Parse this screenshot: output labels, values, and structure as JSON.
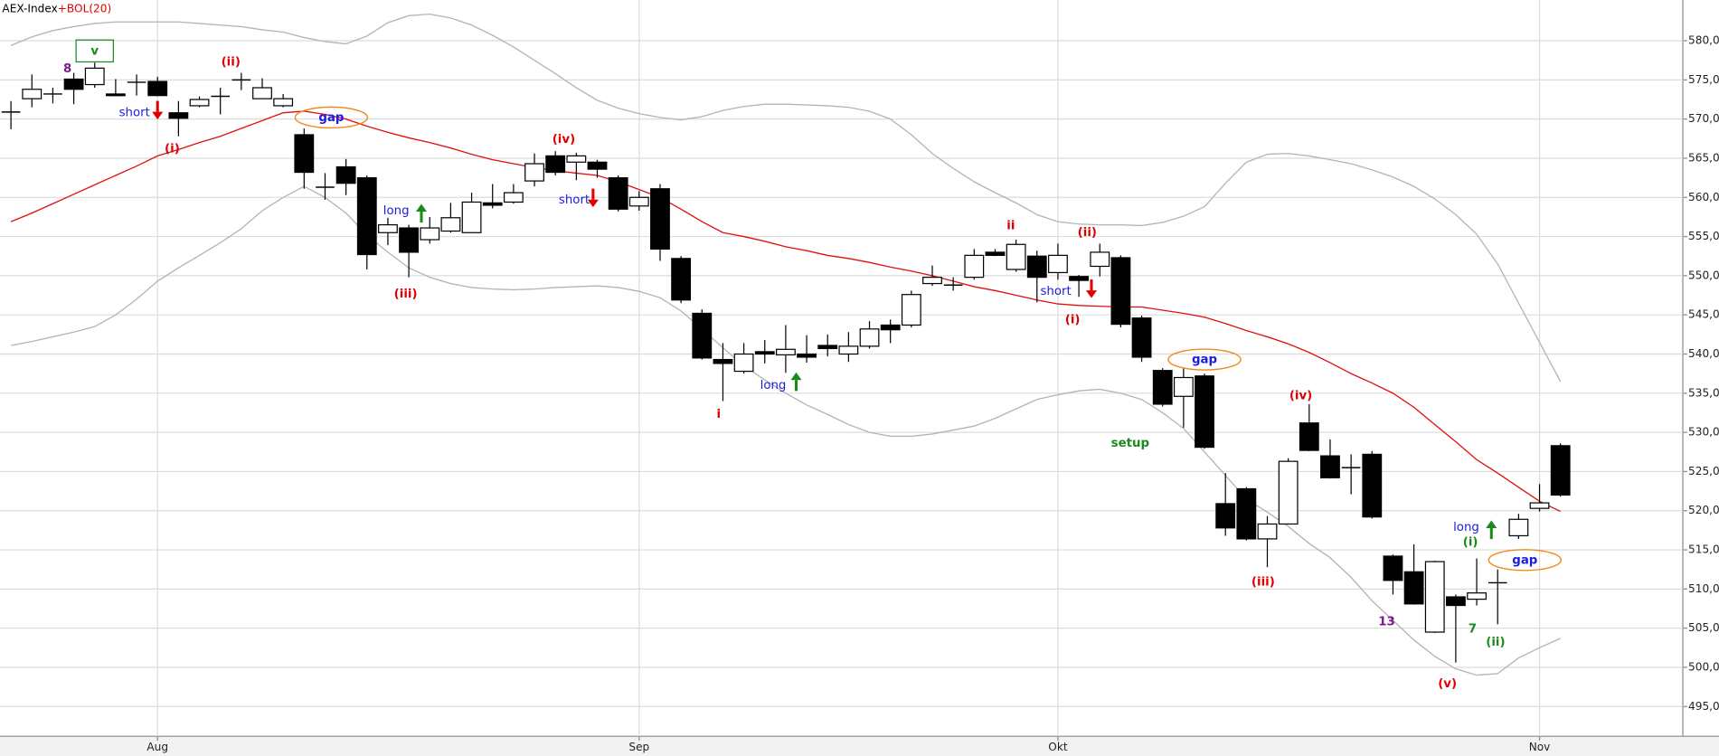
{
  "chart_data": {
    "type": "candlestick",
    "title": "AEX-Index",
    "indicator": "+BOL(20)",
    "title_color": "#000000",
    "indicator_color": "#e00000",
    "categories": [
      null,
      null,
      null,
      null,
      null,
      null,
      null,
      "Aug",
      null,
      null,
      null,
      null,
      null,
      null,
      null,
      null,
      null,
      null,
      null,
      null,
      null,
      null,
      null,
      null,
      null,
      null,
      null,
      null,
      null,
      null,
      "Sep",
      null,
      null,
      null,
      null,
      null,
      null,
      null,
      null,
      null,
      null,
      null,
      null,
      null,
      null,
      null,
      null,
      null,
      null,
      null,
      "Okt",
      null,
      null,
      null,
      null,
      null,
      null,
      null,
      null,
      null,
      null,
      null,
      null,
      null,
      null,
      null,
      null,
      null,
      null,
      null,
      null,
      null,
      null,
      "Nov",
      null
    ],
    "open": [
      570.9,
      572.6,
      573.2,
      575.1,
      574.4,
      573.2,
      574.7,
      574.8,
      570.8,
      571.7,
      572.9,
      575.0,
      572.6,
      571.7,
      568.0,
      561.3,
      563.9,
      562.5,
      555.5,
      556.1,
      554.6,
      555.7,
      555.5,
      559.3,
      559.4,
      562.1,
      565.3,
      564.5,
      564.5,
      562.5,
      558.9,
      561.1,
      552.2,
      545.2,
      539.3,
      537.8,
      540.3,
      539.9,
      540.0,
      541.1,
      540.0,
      541.0,
      543.7,
      543.7,
      549.0,
      548.8,
      549.8,
      553.0,
      550.8,
      552.5,
      550.4,
      549.9,
      551.2,
      552.3,
      544.6,
      537.9,
      534.6,
      537.2,
      520.9,
      522.8,
      516.4,
      518.3,
      531.2,
      527.0,
      525.5,
      527.2,
      514.2,
      512.2,
      504.5,
      509.0,
      508.7,
      510.8,
      516.8,
      520.3,
      528.3
    ],
    "high": [
      572.3,
      575.7,
      574.0,
      575.9,
      577.2,
      575.1,
      575.7,
      575.4,
      572.3,
      572.9,
      574.0,
      575.9,
      575.2,
      573.2,
      568.8,
      563.1,
      564.9,
      562.8,
      557.4,
      556.5,
      557.5,
      559.3,
      560.6,
      561.7,
      561.7,
      565.6,
      565.9,
      565.7,
      564.8,
      562.8,
      560.8,
      561.7,
      552.5,
      545.7,
      541.4,
      541.4,
      541.8,
      543.7,
      542.4,
      542.5,
      542.8,
      544.2,
      544.4,
      548.1,
      551.3,
      549.8,
      553.4,
      553.4,
      554.6,
      553.2,
      554.1,
      550.1,
      554.1,
      552.6,
      544.9,
      538.2,
      538.2,
      537.5,
      524.8,
      523.0,
      519.3,
      526.7,
      533.6,
      529.1,
      527.2,
      527.6,
      514.4,
      515.7,
      513.6,
      509.3,
      513.9,
      512.5,
      519.6,
      523.4,
      528.6
    ],
    "low": [
      568.7,
      571.5,
      572.0,
      571.9,
      574.0,
      572.9,
      573.0,
      572.9,
      567.8,
      571.5,
      570.6,
      573.7,
      572.6,
      571.5,
      561.1,
      559.7,
      560.3,
      550.8,
      553.9,
      549.8,
      554.1,
      555.5,
      555.5,
      558.6,
      559.2,
      561.4,
      562.8,
      562.2,
      562.5,
      558.2,
      558.3,
      551.9,
      546.5,
      539.3,
      534.0,
      537.5,
      538.8,
      537.6,
      538.9,
      539.7,
      539.0,
      540.7,
      541.4,
      543.4,
      548.7,
      548.1,
      549.5,
      552.5,
      550.5,
      546.6,
      549.5,
      547.3,
      549.9,
      543.4,
      539.0,
      533.3,
      530.6,
      527.9,
      516.8,
      516.2,
      512.8,
      518.3,
      527.6,
      524.1,
      522.1,
      519.0,
      509.3,
      508.0,
      504.4,
      500.6,
      507.9,
      505.5,
      516.4,
      519.9,
      521.8
    ],
    "close": [
      570.9,
      573.8,
      573.2,
      573.8,
      576.5,
      573.0,
      574.7,
      573.0,
      570.1,
      572.5,
      572.9,
      575.0,
      574.0,
      572.6,
      563.2,
      561.3,
      561.8,
      552.7,
      556.5,
      553.0,
      556.1,
      557.4,
      559.4,
      559.0,
      560.6,
      564.3,
      563.2,
      565.3,
      563.6,
      558.5,
      560.0,
      553.4,
      546.9,
      539.5,
      538.8,
      540.0,
      540.0,
      540.6,
      539.6,
      540.7,
      541.0,
      543.2,
      543.1,
      547.6,
      549.8,
      548.8,
      552.6,
      552.6,
      554.0,
      549.8,
      552.6,
      549.4,
      553.0,
      543.8,
      539.6,
      533.6,
      537.0,
      528.1,
      517.8,
      516.4,
      518.3,
      526.3,
      527.7,
      524.2,
      525.5,
      519.2,
      511.1,
      508.1,
      513.5,
      507.9,
      509.5,
      510.8,
      518.9,
      521.0,
      522.0
    ],
    "up_color": "#ffffff",
    "down_color": "#000000",
    "bands": {
      "upper": [
        579.4,
        580.5,
        581.3,
        581.8,
        582.2,
        582.4,
        582.4,
        582.4,
        582.4,
        582.2,
        582.0,
        581.8,
        581.4,
        581.1,
        580.4,
        579.9,
        579.6,
        580.6,
        582.3,
        583.2,
        583.4,
        582.9,
        582.0,
        580.7,
        579.2,
        577.5,
        575.8,
        574.0,
        572.4,
        571.4,
        570.7,
        570.2,
        569.9,
        570.3,
        571.1,
        571.6,
        571.9,
        571.9,
        571.8,
        571.7,
        571.5,
        571.0,
        570.0,
        568.0,
        565.6,
        563.7,
        562.0,
        560.6,
        559.3,
        557.8,
        556.9,
        556.6,
        556.5,
        556.5,
        556.4,
        556.8,
        557.6,
        558.8,
        561.8,
        564.5,
        565.5,
        565.6,
        565.3,
        564.8,
        564.3,
        563.5,
        562.6,
        561.4,
        559.8,
        557.8,
        555.3,
        551.5,
        546.5,
        541.5,
        536.5
      ],
      "middle": [
        556.9,
        558.0,
        559.2,
        560.4,
        561.6,
        562.8,
        564.0,
        565.3,
        566.1,
        567.0,
        567.8,
        568.8,
        569.8,
        570.8,
        571.0,
        570.6,
        570.0,
        569.1,
        568.3,
        567.6,
        567.0,
        566.3,
        565.5,
        564.8,
        564.3,
        563.8,
        563.4,
        563.1,
        562.8,
        562.0,
        561.0,
        560.0,
        558.5,
        556.9,
        555.5,
        555.0,
        554.4,
        553.7,
        553.2,
        552.6,
        552.2,
        551.7,
        551.1,
        550.6,
        550.0,
        549.3,
        548.6,
        548.1,
        547.5,
        546.9,
        546.4,
        546.2,
        546.1,
        546.0,
        546.0,
        545.6,
        545.2,
        544.7,
        543.9,
        543.0,
        542.2,
        541.3,
        540.2,
        538.9,
        537.5,
        536.3,
        535.0,
        533.2,
        531.0,
        528.8,
        526.5,
        524.8,
        523.0,
        521.2,
        519.9
      ],
      "lower": [
        541.1,
        541.6,
        542.2,
        542.8,
        543.5,
        545.0,
        547.0,
        549.3,
        551.0,
        552.6,
        554.2,
        556.0,
        558.3,
        560.0,
        561.4,
        560.0,
        558.0,
        555.2,
        553.0,
        551.0,
        549.8,
        549.0,
        548.5,
        548.3,
        548.2,
        548.3,
        548.5,
        548.6,
        548.7,
        548.5,
        548.0,
        547.2,
        545.5,
        543.2,
        540.8,
        538.5,
        536.7,
        535.0,
        533.5,
        532.3,
        531.0,
        530.0,
        529.5,
        529.5,
        529.8,
        530.3,
        530.8,
        531.8,
        533.0,
        534.2,
        534.8,
        535.3,
        535.5,
        535.0,
        534.2,
        532.5,
        530.5,
        527.5,
        524.5,
        521.5,
        519.8,
        518.0,
        515.8,
        514.0,
        511.5,
        508.5,
        506.0,
        503.5,
        501.4,
        499.8,
        499.0,
        499.2,
        501.2,
        502.5,
        503.7
      ],
      "band_color": "#b4b4b4",
      "middle_color": "#e01010"
    },
    "ylim": [
      491.2,
      585.2
    ],
    "yticks": [
      {
        "value": 495,
        "label": "495,00"
      },
      {
        "value": 500,
        "label": "500,00"
      },
      {
        "value": 505,
        "label": "505,00"
      },
      {
        "value": 510,
        "label": "510,00"
      },
      {
        "value": 515,
        "label": "515,00"
      },
      {
        "value": 520,
        "label": "520,00"
      },
      {
        "value": 525,
        "label": "525,00"
      },
      {
        "value": 530,
        "label": "530,00"
      },
      {
        "value": 535,
        "label": "535,00"
      },
      {
        "value": 540,
        "label": "540,00"
      },
      {
        "value": 545,
        "label": "545,00"
      },
      {
        "value": 550,
        "label": "550,00"
      },
      {
        "value": 555,
        "label": "555,00"
      },
      {
        "value": 560,
        "label": "560,00"
      },
      {
        "value": 565,
        "label": "565,00"
      },
      {
        "value": 570,
        "label": "570,00"
      },
      {
        "value": 575,
        "label": "575,00"
      },
      {
        "value": 580,
        "label": "580,00"
      }
    ],
    "grid": true,
    "annotations": [
      {
        "text": "v",
        "color": "#1a8a1a",
        "index": 4,
        "price": 578.7,
        "frame": "box"
      },
      {
        "text": "8",
        "color": "#7a1a8a",
        "index": 2.7,
        "price": 576.4
      },
      {
        "text": "(ii)",
        "color": "#e00000",
        "index": 10.5,
        "price": 577.3
      },
      {
        "text": "short",
        "color": "#1a1ae0",
        "index": 5.9,
        "price": 570.8
      },
      {
        "arrow": "down",
        "color": "#e00000",
        "index": 7,
        "price": 571.2
      },
      {
        "text": "(i)",
        "color": "#e00000",
        "index": 7.7,
        "price": 566.2
      },
      {
        "text": "gap",
        "color": "#1a1ae0",
        "index": 15.3,
        "price": 570.2,
        "frame": "ellipse",
        "frame_color": "#f08c1e"
      },
      {
        "text": "long",
        "color": "#1a1ae0",
        "index": 18.4,
        "price": 558.3
      },
      {
        "arrow": "up",
        "color": "#1a8a1a",
        "index": 19.6,
        "price": 557.9
      },
      {
        "text": "(iii)",
        "color": "#e00000",
        "index": 18.85,
        "price": 547.7
      },
      {
        "text": "(iv)",
        "color": "#e00000",
        "index": 26.4,
        "price": 567.4
      },
      {
        "text": "short",
        "color": "#1a1ae0",
        "index": 26.9,
        "price": 559.7
      },
      {
        "arrow": "down",
        "color": "#e00000",
        "index": 27.8,
        "price": 560.0
      },
      {
        "text": "i",
        "color": "#e00000",
        "index": 33.8,
        "price": 532.3
      },
      {
        "text": "long",
        "color": "#1a1ae0",
        "index": 36.4,
        "price": 536.0
      },
      {
        "arrow": "up",
        "color": "#1a8a1a",
        "index": 37.5,
        "price": 536.4
      },
      {
        "text": "ii",
        "color": "#e00000",
        "index": 47.75,
        "price": 556.4
      },
      {
        "text": "(ii)",
        "color": "#e00000",
        "index": 51.4,
        "price": 555.5
      },
      {
        "text": "short",
        "color": "#1a1ae0",
        "index": 49.9,
        "price": 548.0
      },
      {
        "arrow": "down",
        "color": "#e00000",
        "index": 51.6,
        "price": 548.4
      },
      {
        "text": "(i)",
        "color": "#e00000",
        "index": 50.7,
        "price": 544.4
      },
      {
        "text": "gap",
        "color": "#1a1ae0",
        "index": 57.0,
        "price": 539.3,
        "frame": "ellipse",
        "frame_color": "#f08c1e"
      },
      {
        "text": "setup",
        "color": "#1a8a1a",
        "index": 53.45,
        "price": 528.6
      },
      {
        "text": "(iv)",
        "color": "#e00000",
        "index": 61.6,
        "price": 534.7
      },
      {
        "text": "(iii)",
        "color": "#e00000",
        "index": 59.8,
        "price": 510.9
      },
      {
        "text": "long",
        "color": "#1a1ae0",
        "index": 69.5,
        "price": 517.9
      },
      {
        "arrow": "up",
        "color": "#1a8a1a",
        "index": 70.7,
        "price": 517.5
      },
      {
        "text": "(i)",
        "color": "#1a8a1a",
        "index": 69.7,
        "price": 516.0
      },
      {
        "text": "gap",
        "color": "#1a1ae0",
        "index": 72.3,
        "price": 513.7,
        "frame": "ellipse",
        "frame_color": "#f08c1e"
      },
      {
        "text": "13",
        "color": "#7a1a8a",
        "index": 65.7,
        "price": 505.8
      },
      {
        "text": "7",
        "color": "#1a8a1a",
        "index": 69.8,
        "price": 504.9
      },
      {
        "text": "(ii)",
        "color": "#1a8a1a",
        "index": 70.9,
        "price": 503.2
      },
      {
        "text": "(v)",
        "color": "#e00000",
        "index": 68.6,
        "price": 497.9
      }
    ]
  }
}
